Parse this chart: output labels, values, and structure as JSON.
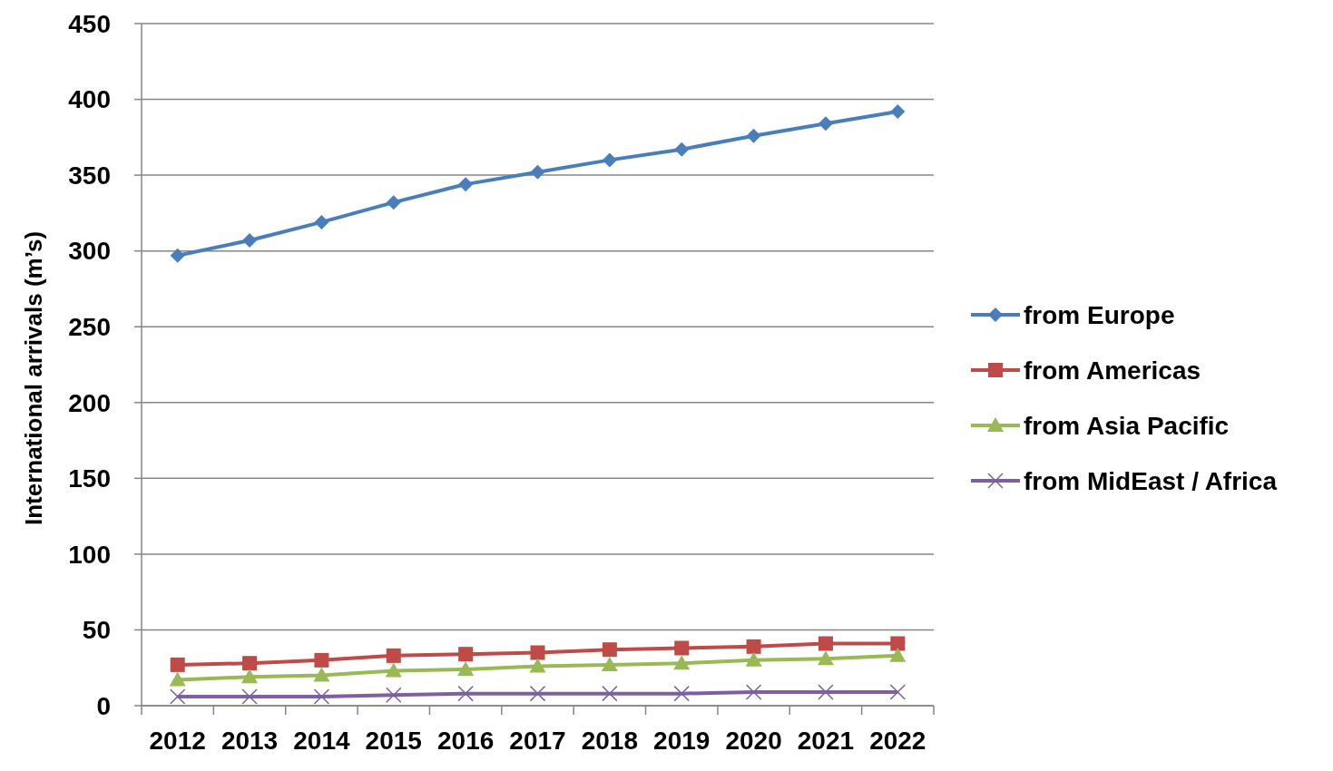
{
  "chart_data": {
    "type": "line",
    "ylabel": "International arrivals (m’s)",
    "categories": [
      "2012",
      "2013",
      "2014",
      "2015",
      "2016",
      "2017",
      "2018",
      "2019",
      "2020",
      "2021",
      "2022"
    ],
    "ylim": [
      0,
      450
    ],
    "yticks": [
      0,
      50,
      100,
      150,
      200,
      250,
      300,
      350,
      400,
      450
    ],
    "grid": "y",
    "legend": "right",
    "line_style": "solid",
    "series": [
      {
        "name": "from Europe",
        "color": "#4a7ebb",
        "marker": "diamond",
        "values": [
          297,
          307,
          319,
          332,
          344,
          352,
          360,
          367,
          376,
          384,
          392
        ]
      },
      {
        "name": "from Americas",
        "color": "#be4b48",
        "marker": "square",
        "values": [
          27,
          28,
          30,
          33,
          34,
          35,
          37,
          38,
          39,
          41,
          41
        ]
      },
      {
        "name": "from Asia Pacific",
        "color": "#98b954",
        "marker": "triangle",
        "values": [
          17,
          19,
          20,
          23,
          24,
          26,
          27,
          28,
          30,
          31,
          33
        ]
      },
      {
        "name": "from MidEast / Africa",
        "color": "#7d60a0",
        "marker": "cross",
        "values": [
          6,
          6,
          6,
          7,
          8,
          8,
          8,
          8,
          9,
          9,
          9
        ]
      }
    ]
  }
}
